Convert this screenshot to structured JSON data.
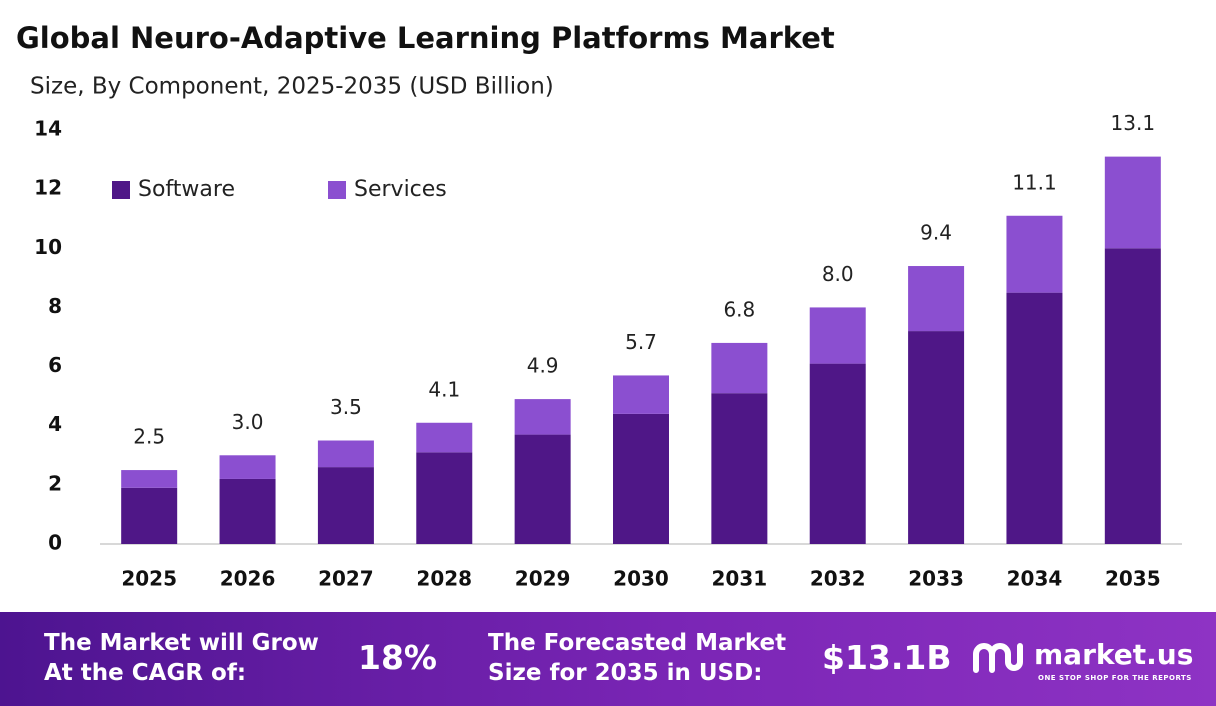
{
  "chart_data": {
    "type": "stacked_bar",
    "title": "Global Neuro-Adaptive Learning Platforms Market",
    "subtitle": "Size, By Component, 2025-2035 (USD Billion)",
    "categories": [
      "2025",
      "2026",
      "2027",
      "2028",
      "2029",
      "2030",
      "2031",
      "2032",
      "2033",
      "2034",
      "2035"
    ],
    "series": [
      {
        "name": "Software",
        "color": "#4f1787",
        "values": [
          1.9,
          2.2,
          2.6,
          3.1,
          3.7,
          4.4,
          5.1,
          6.1,
          7.2,
          8.5,
          10.0
        ]
      },
      {
        "name": "Services",
        "color": "#8b4fd0",
        "values": [
          0.6,
          0.8,
          0.9,
          1.0,
          1.2,
          1.3,
          1.7,
          1.9,
          2.2,
          2.6,
          3.1
        ]
      }
    ],
    "totals": [
      2.5,
      3.0,
      3.5,
      4.1,
      4.9,
      5.7,
      6.8,
      8.0,
      9.4,
      11.1,
      13.1
    ],
    "total_labels": [
      "2.5",
      "3.0",
      "3.5",
      "4.1",
      "4.9",
      "5.7",
      "6.8",
      "8.0",
      "9.4",
      "11.1",
      "13.1"
    ],
    "ylim": [
      0,
      14
    ],
    "yticks": [
      0,
      2,
      4,
      6,
      8,
      10,
      12,
      14
    ],
    "grid": false
  },
  "footer": {
    "cagr_text": [
      "The Market will Grow",
      "At the CAGR of:"
    ],
    "cagr_value": "18%",
    "forecast_text": [
      "The Forecasted Market",
      "Size for 2035 in USD:"
    ],
    "forecast_value": "$13.1B",
    "logo": "market.us",
    "tagline": "ONE STOP SHOP FOR THE REPORTS"
  }
}
